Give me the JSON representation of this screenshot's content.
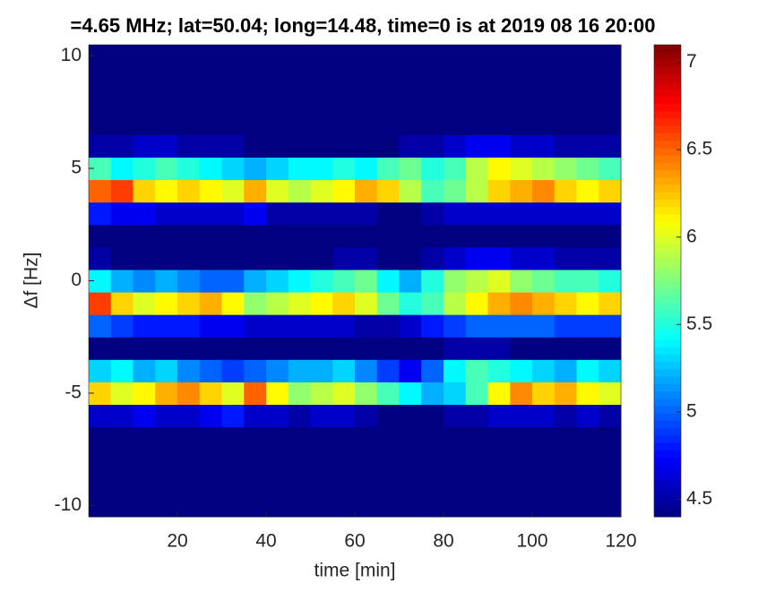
{
  "chart_data": {
    "type": "heatmap",
    "title": "=4.65 MHz;  lat=50.04; long=14.48, time=0 is at 2019 08 16 20:00",
    "xlabel": "time [min]",
    "ylabel": "Δf [Hz]",
    "colormap": "jet",
    "x": [
      2.5,
      7.5,
      12.5,
      17.5,
      22.5,
      27.5,
      32.5,
      37.5,
      42.5,
      47.5,
      52.5,
      57.5,
      62.5,
      67.5,
      72.5,
      77.5,
      82.5,
      87.5,
      92.5,
      97.5,
      102.5,
      107.5,
      112.5,
      117.5
    ],
    "y": [
      -10,
      -9,
      -8,
      -7,
      -6,
      -5,
      -4,
      -3,
      -2,
      -1,
      0,
      1,
      2,
      3,
      4,
      5,
      6,
      7,
      8,
      9,
      10
    ],
    "z": [
      [
        4.4,
        4.4,
        4.4,
        4.4,
        4.4,
        4.4,
        4.4,
        4.4,
        4.4,
        4.4,
        4.4,
        4.4,
        4.4,
        4.4,
        4.4,
        4.4,
        4.4,
        4.4,
        4.4,
        4.4,
        4.4,
        4.4,
        4.4,
        4.4
      ],
      [
        4.4,
        4.4,
        4.4,
        4.4,
        4.4,
        4.4,
        4.4,
        4.4,
        4.4,
        4.4,
        4.4,
        4.4,
        4.4,
        4.4,
        4.4,
        4.4,
        4.4,
        4.4,
        4.4,
        4.4,
        4.4,
        4.4,
        4.4,
        4.4
      ],
      [
        4.4,
        4.4,
        4.4,
        4.4,
        4.4,
        4.4,
        4.4,
        4.4,
        4.4,
        4.4,
        4.4,
        4.4,
        4.4,
        4.4,
        4.4,
        4.4,
        4.4,
        4.4,
        4.4,
        4.4,
        4.4,
        4.4,
        4.4,
        4.4
      ],
      [
        4.4,
        4.4,
        4.4,
        4.4,
        4.4,
        4.4,
        4.4,
        4.4,
        4.4,
        4.4,
        4.4,
        4.4,
        4.4,
        4.4,
        4.4,
        4.4,
        4.4,
        4.4,
        4.4,
        4.4,
        4.4,
        4.4,
        4.4,
        4.4
      ],
      [
        4.6,
        4.6,
        4.7,
        4.6,
        4.6,
        4.7,
        4.8,
        4.6,
        4.6,
        4.5,
        4.6,
        4.6,
        4.5,
        4.4,
        4.4,
        4.4,
        4.5,
        4.5,
        4.6,
        4.6,
        4.6,
        4.5,
        4.6,
        4.5
      ],
      [
        6.2,
        6.0,
        6.1,
        6.3,
        6.4,
        6.2,
        6.0,
        6.5,
        6.1,
        5.8,
        5.9,
        6.0,
        5.8,
        5.6,
        5.4,
        5.2,
        5.3,
        5.6,
        6.1,
        6.4,
        6.2,
        6.3,
        6.1,
        6.0
      ],
      [
        5.3,
        5.4,
        5.2,
        5.3,
        5.1,
        5.0,
        4.9,
        5.0,
        5.1,
        5.2,
        5.2,
        5.3,
        5.1,
        4.9,
        4.7,
        5.0,
        5.4,
        5.6,
        5.5,
        5.4,
        5.3,
        5.2,
        5.4,
        5.3
      ],
      [
        4.4,
        4.4,
        4.4,
        4.4,
        4.4,
        4.4,
        4.4,
        4.4,
        4.4,
        4.4,
        4.4,
        4.4,
        4.4,
        4.4,
        4.4,
        4.4,
        4.5,
        4.5,
        4.5,
        4.4,
        4.4,
        4.4,
        4.4,
        4.4
      ],
      [
        5.0,
        4.9,
        4.8,
        4.8,
        4.8,
        4.7,
        4.7,
        4.6,
        4.6,
        4.6,
        4.6,
        4.6,
        4.5,
        4.5,
        4.6,
        4.8,
        4.9,
        5.0,
        5.0,
        5.0,
        5.0,
        4.9,
        4.9,
        4.9
      ],
      [
        6.6,
        6.2,
        6.0,
        6.1,
        6.2,
        6.3,
        6.1,
        5.8,
        5.9,
        6.0,
        6.1,
        6.2,
        6.0,
        5.7,
        5.5,
        5.6,
        5.9,
        6.1,
        6.3,
        6.4,
        6.3,
        6.2,
        6.1,
        6.2
      ],
      [
        5.4,
        5.2,
        5.1,
        5.2,
        5.1,
        5.0,
        5.0,
        5.2,
        5.3,
        5.4,
        5.5,
        5.6,
        5.7,
        5.4,
        5.2,
        5.5,
        5.8,
        5.9,
        6.0,
        5.8,
        5.7,
        5.6,
        5.6,
        5.5
      ],
      [
        4.5,
        4.4,
        4.4,
        4.4,
        4.4,
        4.4,
        4.4,
        4.4,
        4.4,
        4.4,
        4.4,
        4.5,
        4.5,
        4.4,
        4.4,
        4.5,
        4.6,
        4.7,
        4.7,
        4.6,
        4.6,
        4.5,
        4.5,
        4.5
      ],
      [
        4.4,
        4.4,
        4.4,
        4.4,
        4.4,
        4.4,
        4.4,
        4.4,
        4.4,
        4.4,
        4.4,
        4.4,
        4.4,
        4.4,
        4.4,
        4.4,
        4.4,
        4.4,
        4.4,
        4.4,
        4.4,
        4.4,
        4.4,
        4.4
      ],
      [
        4.8,
        4.7,
        4.7,
        4.6,
        4.6,
        4.6,
        4.6,
        4.7,
        4.5,
        4.5,
        4.5,
        4.5,
        4.5,
        4.4,
        4.4,
        4.5,
        4.6,
        4.6,
        4.6,
        4.6,
        4.6,
        4.6,
        4.6,
        4.6
      ],
      [
        6.5,
        6.6,
        6.2,
        6.1,
        6.2,
        6.1,
        6.0,
        6.3,
        6.0,
        5.9,
        6.0,
        6.1,
        6.3,
        6.2,
        5.9,
        5.6,
        5.7,
        5.9,
        6.2,
        6.3,
        6.4,
        6.2,
        6.1,
        6.2
      ],
      [
        5.6,
        5.4,
        5.5,
        5.6,
        5.5,
        5.4,
        5.3,
        5.2,
        5.3,
        5.4,
        5.4,
        5.5,
        5.4,
        5.6,
        5.7,
        5.5,
        5.6,
        5.9,
        6.1,
        6.0,
        5.9,
        5.8,
        5.7,
        5.6
      ],
      [
        4.5,
        4.5,
        4.6,
        4.6,
        4.5,
        4.5,
        4.5,
        4.4,
        4.4,
        4.4,
        4.4,
        4.4,
        4.4,
        4.4,
        4.5,
        4.5,
        4.6,
        4.7,
        4.7,
        4.6,
        4.6,
        4.5,
        4.5,
        4.5
      ],
      [
        4.4,
        4.4,
        4.4,
        4.4,
        4.4,
        4.4,
        4.4,
        4.4,
        4.4,
        4.4,
        4.4,
        4.4,
        4.4,
        4.4,
        4.4,
        4.4,
        4.4,
        4.4,
        4.4,
        4.4,
        4.4,
        4.4,
        4.4,
        4.4
      ],
      [
        4.4,
        4.4,
        4.4,
        4.4,
        4.4,
        4.4,
        4.4,
        4.4,
        4.4,
        4.4,
        4.4,
        4.4,
        4.4,
        4.4,
        4.4,
        4.4,
        4.4,
        4.4,
        4.4,
        4.4,
        4.4,
        4.4,
        4.4,
        4.4
      ],
      [
        4.4,
        4.4,
        4.4,
        4.4,
        4.4,
        4.4,
        4.4,
        4.4,
        4.4,
        4.4,
        4.4,
        4.4,
        4.4,
        4.4,
        4.4,
        4.4,
        4.4,
        4.4,
        4.4,
        4.4,
        4.4,
        4.4,
        4.4,
        4.4
      ],
      [
        4.4,
        4.4,
        4.4,
        4.4,
        4.4,
        4.4,
        4.4,
        4.4,
        4.4,
        4.4,
        4.4,
        4.4,
        4.4,
        4.4,
        4.4,
        4.4,
        4.4,
        4.4,
        4.4,
        4.4,
        4.4,
        4.4,
        4.4,
        4.4
      ]
    ],
    "xlim": [
      0,
      120
    ],
    "ylim": [
      -10.5,
      10.5
    ],
    "xticks": [
      20,
      40,
      60,
      80,
      100,
      120
    ],
    "yticks": [
      -10,
      -5,
      0,
      5,
      10
    ],
    "clim": [
      4.4,
      7.1
    ],
    "cticks": [
      4.5,
      5,
      5.5,
      6,
      6.5,
      7
    ]
  }
}
